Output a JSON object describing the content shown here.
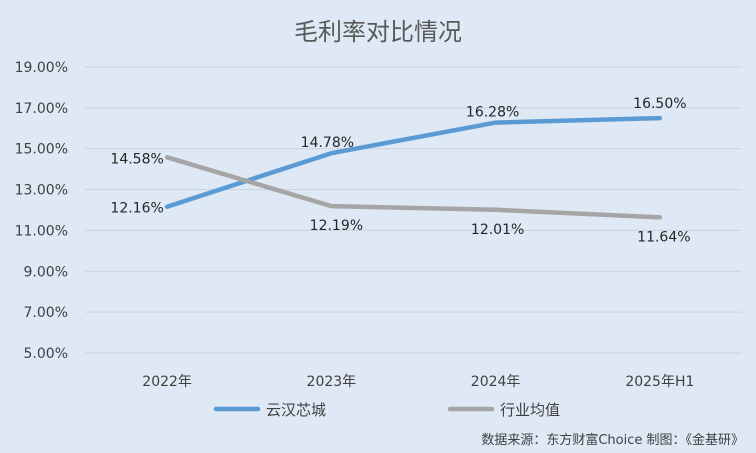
{
  "chart_data": {
    "type": "line",
    "title": "毛利率对比情况",
    "categories": [
      "2022年",
      "2023年",
      "2024年",
      "2025年H1"
    ],
    "ylim": [
      5,
      19
    ],
    "yticks": [
      "5.00%",
      "7.00%",
      "9.00%",
      "11.00%",
      "13.00%",
      "15.00%",
      "17.00%",
      "19.00%"
    ],
    "grid": true,
    "legend_position": "bottom",
    "series": [
      {
        "name": "云汉芯城",
        "values": [
          12.16,
          14.78,
          16.28,
          16.5
        ],
        "labels": [
          "12.16%",
          "14.78%",
          "16.28%",
          "16.50%"
        ],
        "color": "#5b9bd5"
      },
      {
        "name": "行业均值",
        "values": [
          14.58,
          12.19,
          12.01,
          11.64
        ],
        "labels": [
          "14.58%",
          "12.19%",
          "12.01%",
          "11.64%"
        ],
        "color": "#a5a5a5"
      }
    ]
  },
  "source_note": "数据来源：东方财富Choice    制图：《金基研》"
}
